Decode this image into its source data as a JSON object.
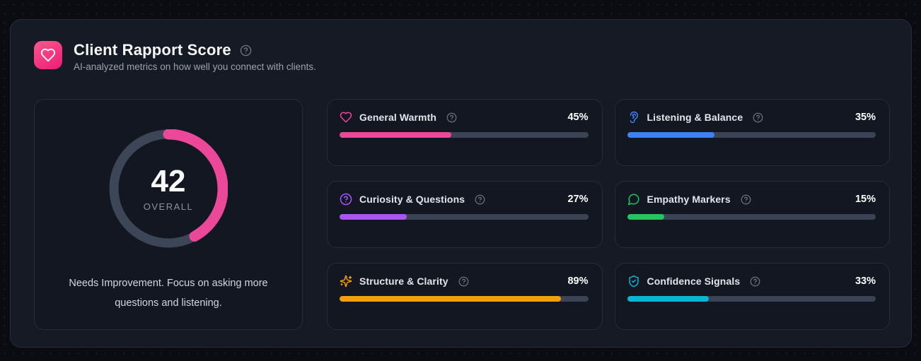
{
  "header": {
    "badge_icon": "heart-icon",
    "title": "Client Rapport Score",
    "help_icon": "help-circle-icon",
    "subtitle": "AI-analyzed metrics on how well you connect with clients."
  },
  "overall": {
    "value": 42,
    "display": "42",
    "label": "OVERALL",
    "message": "Needs Improvement. Focus on asking more questions and listening.",
    "arc_color": "#ec4899",
    "track_color": "#3d4657"
  },
  "metrics": [
    {
      "label": "General Warmth",
      "value": 45,
      "display": "45%",
      "icon": "heart-icon",
      "color": "#ec4899"
    },
    {
      "label": "Listening & Balance",
      "value": 35,
      "display": "35%",
      "icon": "ear-icon",
      "color": "#3b82f6"
    },
    {
      "label": "Curiosity & Questions",
      "value": 27,
      "display": "27%",
      "icon": "question-circle-icon",
      "color": "#a855f7"
    },
    {
      "label": "Empathy Markers",
      "value": 15,
      "display": "15%",
      "icon": "chat-bubble-icon",
      "color": "#22c55e"
    },
    {
      "label": "Structure & Clarity",
      "value": 89,
      "display": "89%",
      "icon": "sparkles-icon",
      "color": "#f59e0b"
    },
    {
      "label": "Confidence Signals",
      "value": 33,
      "display": "33%",
      "icon": "shield-check-icon",
      "color": "#06b6d4"
    }
  ],
  "colors": {
    "page_background": "#0a0c11",
    "panel_background": "#151a24",
    "card_background": "#131722",
    "border": "#262e3d",
    "bar_track": "#3b4455",
    "help_icon": "#6b7280"
  },
  "chart_data": {
    "type": "bar",
    "title": "Client Rapport Score",
    "categories": [
      "General Warmth",
      "Listening & Balance",
      "Curiosity & Questions",
      "Empathy Markers",
      "Structure & Clarity",
      "Confidence Signals"
    ],
    "values": [
      45,
      35,
      27,
      15,
      89,
      33
    ],
    "unit": "%",
    "xlim": [
      0,
      100
    ],
    "overall_score": 42,
    "overall_max": 100
  }
}
